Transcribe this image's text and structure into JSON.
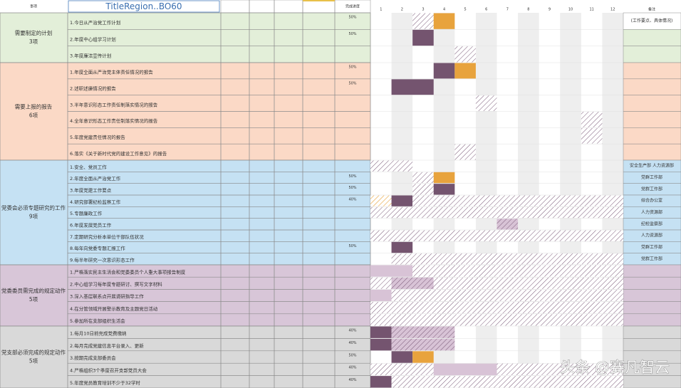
{
  "header": {
    "item_label": "事项",
    "title": "TitleRegion..BO60",
    "progress_label": "完成进度",
    "notes_label": "备注",
    "months": [
      1,
      2,
      3,
      4,
      5,
      6,
      7,
      8,
      9,
      10,
      11,
      12
    ]
  },
  "groups": [
    {
      "name": "需要制定的计划",
      "count": "3项",
      "rows": [
        {
          "text": "1.今日从严治党工作计划",
          "progress": "50%",
          "note": "(工作要点、具体情况)"
        },
        {
          "text": "2.年度中心组学习计划",
          "progress": "50%"
        },
        {
          "text": "3.年度廉洁宣传计划"
        }
      ]
    },
    {
      "name": "需要上报的报告",
      "count": "6项",
      "rows": [
        {
          "text": "1.年度全面从严治党主体责任情况的报告",
          "progress": "50%"
        },
        {
          "text": "2.述职述廉情况的报告",
          "progress": "50%"
        },
        {
          "text": "3.半年意识形态工作责任制落实情况的报告"
        },
        {
          "text": "4.全年意识形态工作责任制落实情况的报告"
        },
        {
          "text": "5.年度党建责任情况的报告"
        },
        {
          "text": "6.落实《关于新时代党的建设工作意见》的报告"
        }
      ]
    },
    {
      "name": "党委会必须专题研究的工作",
      "count": "9项",
      "rows": [
        {
          "text": "1.安全、党员工作",
          "note": "安全生产部 人力资源部"
        },
        {
          "text": "2.年度全面从严治党工作",
          "progress": "50%",
          "note": "党群工作部"
        },
        {
          "text": "3.年度党建工作要点",
          "progress": "50%",
          "note": "党群工作部"
        },
        {
          "text": "4.研究部署纪检监察工作",
          "progress": "40%",
          "note": "综合办公室"
        },
        {
          "text": "5.专题廉政工作",
          "note": "人力资源部"
        },
        {
          "text": "6.年度发展党员工作",
          "note": "纪检监察部"
        },
        {
          "text": "7.定期研究分析本单位干部队伍状况",
          "note": "人力资源部"
        },
        {
          "text": "8.每年向党委专题汇报工作",
          "progress": "50%",
          "note": "党群工作部"
        },
        {
          "text": "9.每半年研究一次意识形态工作",
          "note": "党群工作部"
        }
      ]
    },
    {
      "name": "党委委员需完成的规定动作",
      "count": "5项",
      "rows": [
        {
          "text": "1.严格落实民主生活会和党委委员个人重大事项报告制度"
        },
        {
          "text": "2.中心组学习每年度专题研讨、撰写文字材料"
        },
        {
          "text": "3.深入基层联系点开展调研指导工作"
        },
        {
          "text": "4.在分管领域开展警示教育及主题党日活动"
        },
        {
          "text": "5.参加所在支部组织生活会"
        }
      ]
    },
    {
      "name": "党支部必须完成的规定动作",
      "count": "5项",
      "rows": [
        {
          "text": "1.每月10日前完成党费缴纳",
          "progress": "40%"
        },
        {
          "text": "2.每月完成党建信息平台录入、更新",
          "progress": "40%"
        },
        {
          "text": "3.按期完成支部委员会",
          "progress": "50%"
        },
        {
          "text": "4.严格组织3个季度召开支部党员大会",
          "progress": "40%"
        },
        {
          "text": "5.年度党员教育培训不少于32学时",
          "progress": "40%"
        }
      ]
    }
  ],
  "watermark": "头条 @赛凡智云"
}
